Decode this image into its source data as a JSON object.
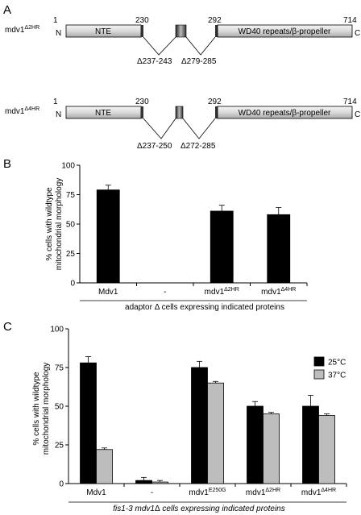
{
  "panels": {
    "a_label": "A",
    "b_label": "B",
    "c_label": "C"
  },
  "panel_a": {
    "constructs": [
      {
        "name_base": "mdv1",
        "name_sup": "Δ2HR",
        "pos_start": "1",
        "pos_230": "230",
        "pos_292": "292",
        "pos_end": "714",
        "n_term": "N",
        "c_term": "C",
        "nte_label": "NTE",
        "wd40_label": "WD40 repeats/β-propeller",
        "deletion_left": "Δ237-243",
        "deletion_right": "Δ279-285"
      },
      {
        "name_base": "mdv1",
        "name_sup": "Δ4HR",
        "pos_start": "1",
        "pos_230": "230",
        "pos_292": "292",
        "pos_end": "714",
        "n_term": "N",
        "c_term": "C",
        "nte_label": "NTE",
        "wd40_label": "WD40 repeats/β-propeller",
        "deletion_left": "Δ237-250",
        "deletion_right": "Δ272-285"
      }
    ]
  },
  "chart_data": [
    {
      "type": "bar",
      "panel": "B",
      "categories": [
        {
          "base": "Mdv1",
          "sup": ""
        },
        {
          "base": "-",
          "sup": ""
        },
        {
          "base": "mdv1",
          "sup": "Δ2HR"
        },
        {
          "base": "mdv1",
          "sup": "Δ4HR"
        }
      ],
      "series": [
        {
          "values": [
            79,
            0,
            61,
            58
          ],
          "errors": [
            4,
            0,
            5,
            6
          ],
          "color": "#000000"
        }
      ],
      "ylabel_line1": "% cells with wildtype",
      "ylabel_line2": "mitochondrial morphology",
      "ylim": [
        0,
        100
      ],
      "yticks": [
        "0",
        "25",
        "50",
        "75",
        "100"
      ],
      "caption_parts": [
        "adaptor ",
        "Δ",
        " cells expressing indicated proteins"
      ]
    },
    {
      "type": "bar",
      "panel": "C",
      "categories": [
        {
          "base": "Mdv1",
          "sup": ""
        },
        {
          "base": "-",
          "sup": ""
        },
        {
          "base": "mdv1",
          "sup": "E250G"
        },
        {
          "base": "mdv1",
          "sup": "Δ2HR"
        },
        {
          "base": "mdv1",
          "sup": "Δ4HR"
        }
      ],
      "series": [
        {
          "name": "25°C",
          "values": [
            78,
            2,
            75,
            50,
            50
          ],
          "errors": [
            4,
            2,
            4,
            3,
            7
          ],
          "color": "#000000"
        },
        {
          "name": "37°C",
          "values": [
            22,
            1,
            65,
            45,
            44
          ],
          "errors": [
            1,
            1,
            1,
            1,
            1
          ],
          "color": "#bdbdbd"
        }
      ],
      "ylabel_line1": "% cells with wildtype",
      "ylabel_line2": "mitochondrial morphology",
      "ylim": [
        0,
        100
      ],
      "yticks": [
        "0",
        "25",
        "50",
        "75",
        "100"
      ],
      "legend_position": "top-right",
      "caption_parts": [
        "fis1-3 mdv1",
        "Δ",
        " cells expressing indicated proteins"
      ]
    }
  ]
}
